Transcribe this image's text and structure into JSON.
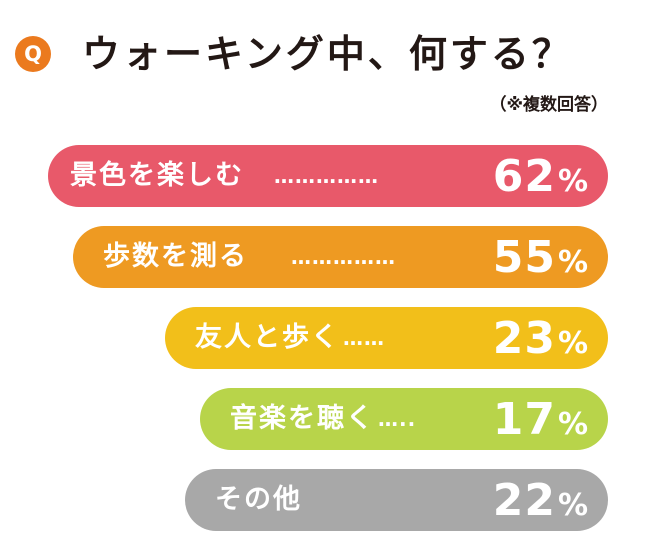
{
  "header": {
    "badge": "Q",
    "title": "ウォーキング中、何する？",
    "note": "（※複数回答）"
  },
  "colors": {
    "badge": "#eb7a1e",
    "text": "#231815"
  },
  "chart_data": {
    "type": "bar",
    "orientation": "horizontal",
    "unit": "%",
    "categories": [
      "景色を楽しむ",
      "歩数を測る",
      "友人と歩く",
      "音楽を聴く",
      "その他"
    ],
    "values": [
      62,
      55,
      23,
      17,
      22
    ],
    "dot_leaders": [
      "……………",
      "……………",
      "……",
      "…..",
      ""
    ],
    "bar_colors": [
      "#e8596a",
      "#ee9a22",
      "#f2bf1a",
      "#b8d44a",
      "#a8a8a8"
    ],
    "bars": [
      {
        "label": "景色を楽しむ",
        "dots": "……………",
        "value": "62",
        "unit": "%"
      },
      {
        "label": "歩数を測る",
        "dots": "……………",
        "value": "55",
        "unit": "%"
      },
      {
        "label": "友人と歩く",
        "dots": "……",
        "value": "23",
        "unit": "%"
      },
      {
        "label": "音楽を聴く",
        "dots": "…..",
        "value": "17",
        "unit": "%"
      },
      {
        "label": "その他",
        "dots": "",
        "value": "22",
        "unit": "%"
      }
    ]
  }
}
